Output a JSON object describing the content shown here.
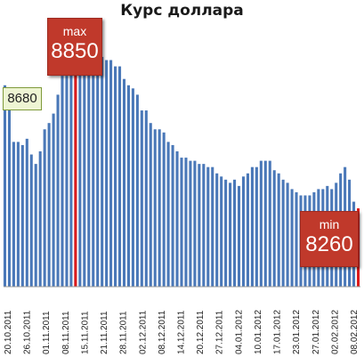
{
  "chart_data": {
    "type": "bar",
    "title": "Курс доллара",
    "x_tick_labels": [
      "20.10.2011",
      "26.10.2011",
      "01.11.2011",
      "08.11.2011",
      "15.11.2011",
      "21.11.2011",
      "28.11.2011",
      "02.12.2011",
      "08.12.2011",
      "14.12.2011",
      "20.12.2011",
      "27.12.2011",
      "04.01.2012",
      "10.01.2012",
      "17.01.2012",
      "23.01.2012",
      "27.01.2012",
      "02.02.2012",
      "08.02.2012"
    ],
    "values": [
      8680,
      8670,
      8500,
      8500,
      8490,
      8510,
      8460,
      8430,
      8470,
      8540,
      8560,
      8590,
      8650,
      8710,
      8710,
      8800,
      8850,
      8820,
      8810,
      8810,
      8810,
      8790,
      8770,
      8760,
      8760,
      8740,
      8740,
      8700,
      8680,
      8670,
      8650,
      8600,
      8600,
      8560,
      8540,
      8540,
      8530,
      8500,
      8490,
      8470,
      8450,
      8450,
      8440,
      8440,
      8430,
      8430,
      8420,
      8420,
      8400,
      8390,
      8380,
      8370,
      8380,
      8360,
      8390,
      8400,
      8420,
      8420,
      8440,
      8440,
      8440,
      8410,
      8400,
      8380,
      8370,
      8350,
      8340,
      8330,
      8330,
      8330,
      8340,
      8350,
      8350,
      8360,
      8350,
      8370,
      8400,
      8420,
      8380,
      8310,
      8260
    ],
    "ylim": [
      8040,
      8900
    ],
    "grid": false,
    "color": "#4a78b8",
    "marker_color": "#dd1a1a",
    "annotations": [
      {
        "label": "max",
        "value": "8850"
      },
      {
        "label": "min",
        "value": "8260"
      },
      {
        "label": "",
        "value": "8680"
      }
    ]
  }
}
